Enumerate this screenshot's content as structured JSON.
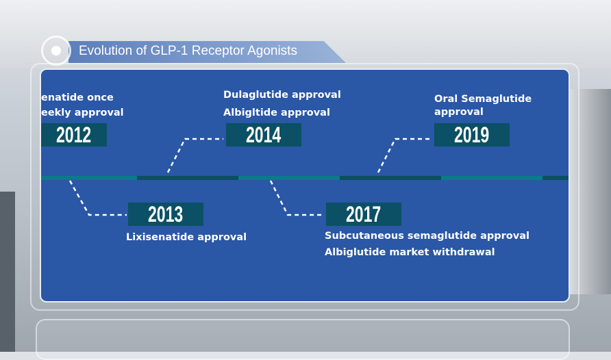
{
  "title": "Evolution of GLP-1 Receptor Agonists",
  "colors": {
    "panel": "#2a57a6",
    "year_box": "#0b5064",
    "timeline_light": "#0b7a8a",
    "timeline_dark": "#0a4f62"
  },
  "events": [
    {
      "year": "2012",
      "lines": [
        "enatide once",
        "eekly approval"
      ]
    },
    {
      "year": "2013",
      "lines": [
        "Lixisenatide approval"
      ]
    },
    {
      "year": "2014",
      "lines": [
        "Dulaglutide approval",
        "Albigltide approval"
      ]
    },
    {
      "year": "2017",
      "lines": [
        "Subcutaneous semaglutide approval",
        "Albiglutide market withdrawal"
      ]
    },
    {
      "year": "2019",
      "lines": [
        "Oral Semaglutide",
        "approval"
      ]
    }
  ]
}
